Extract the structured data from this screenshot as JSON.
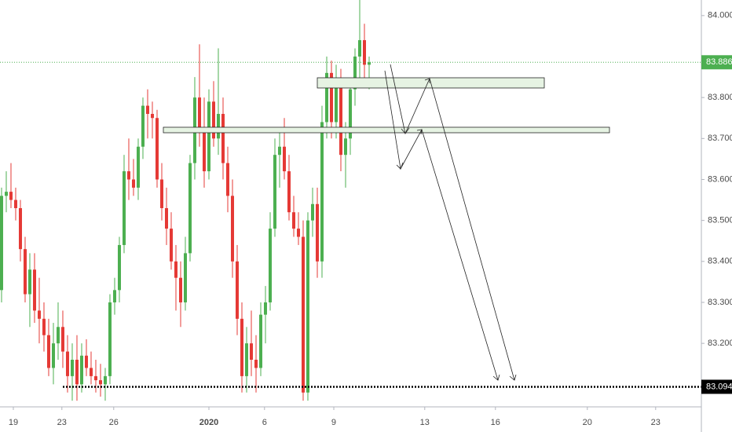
{
  "chart_data": {
    "type": "candlestick",
    "up_color": "#4caf50",
    "down_color": "#e53935",
    "open": [
      83.33,
      83.56,
      83.57,
      83.55,
      83.53,
      83.43,
      83.32,
      83.38,
      83.28,
      83.26,
      83.22,
      83.14,
      83.2,
      83.24,
      83.18,
      83.12,
      83.16,
      83.1,
      83.17,
      83.14,
      83.12,
      83.11,
      83.1,
      83.12,
      83.3,
      83.33,
      83.44,
      83.62,
      83.6,
      83.58,
      83.68,
      83.78,
      83.76,
      83.75,
      83.6,
      83.53,
      83.48,
      83.4,
      83.36,
      83.3,
      83.42,
      83.64,
      83.8,
      83.72,
      83.62,
      83.79,
      83.7,
      83.76,
      83.64,
      83.56,
      83.4,
      83.26,
      83.12,
      83.2,
      83.16,
      83.14,
      83.27,
      83.3,
      83.48,
      83.66,
      83.68,
      83.62,
      83.52,
      83.48,
      83.46,
      83.08,
      83.5,
      83.54,
      83.4,
      83.74,
      83.86,
      83.74,
      83.84,
      83.66,
      83.7,
      83.82,
      83.9,
      83.94,
      83.88
    ],
    "high": [
      83.58,
      83.62,
      83.64,
      83.58,
      83.55,
      83.46,
      83.42,
      83.42,
      83.36,
      83.3,
      83.26,
      83.25,
      83.3,
      83.28,
      83.22,
      83.2,
      83.22,
      83.2,
      83.21,
      83.18,
      83.16,
      83.15,
      83.14,
      83.32,
      83.36,
      83.46,
      83.66,
      83.7,
      83.65,
      83.7,
      83.8,
      83.82,
      83.79,
      83.77,
      83.64,
      83.58,
      83.52,
      83.44,
      83.4,
      83.46,
      83.66,
      83.85,
      83.93,
      83.8,
      83.82,
      83.84,
      83.92,
      83.8,
      83.68,
      83.6,
      83.44,
      83.3,
      83.24,
      83.28,
      83.22,
      83.3,
      83.34,
      83.52,
      83.7,
      83.72,
      83.75,
      83.66,
      83.56,
      83.52,
      83.5,
      83.52,
      83.58,
      83.58,
      83.78,
      83.9,
      83.89,
      83.88,
      83.87,
      83.74,
      83.84,
      83.92,
      84.04,
      83.98,
      83.9
    ],
    "low": [
      83.3,
      83.52,
      83.53,
      83.5,
      83.4,
      83.3,
      83.24,
      83.25,
      83.2,
      83.18,
      83.12,
      83.1,
      83.16,
      83.14,
      83.08,
      83.06,
      83.06,
      83.08,
      83.12,
      83.1,
      83.08,
      83.07,
      83.06,
      83.1,
      83.27,
      83.3,
      83.42,
      83.55,
      83.56,
      83.55,
      83.65,
      83.7,
      83.7,
      83.58,
      83.5,
      83.44,
      83.38,
      83.28,
      83.24,
      83.28,
      83.4,
      83.6,
      83.68,
      83.58,
      83.6,
      83.68,
      83.66,
      83.6,
      83.52,
      83.36,
      83.22,
      83.08,
      83.08,
      83.12,
      83.08,
      83.12,
      83.2,
      83.28,
      83.46,
      83.58,
      83.6,
      83.5,
      83.46,
      83.44,
      83.06,
      83.06,
      83.46,
      83.36,
      83.36,
      83.7,
      83.7,
      83.7,
      83.62,
      83.58,
      83.66,
      83.78,
      83.84,
      83.84,
      83.82
    ],
    "close": [
      83.56,
      83.57,
      83.55,
      83.53,
      83.43,
      83.32,
      83.38,
      83.28,
      83.26,
      83.22,
      83.14,
      83.2,
      83.24,
      83.18,
      83.12,
      83.16,
      83.1,
      83.17,
      83.14,
      83.12,
      83.11,
      83.1,
      83.12,
      83.3,
      83.33,
      83.44,
      83.62,
      83.6,
      83.58,
      83.68,
      83.78,
      83.76,
      83.75,
      83.6,
      83.53,
      83.48,
      83.4,
      83.36,
      83.3,
      83.42,
      83.64,
      83.8,
      83.72,
      83.62,
      83.79,
      83.7,
      83.76,
      83.64,
      83.56,
      83.4,
      83.26,
      83.12,
      83.2,
      83.16,
      83.14,
      83.27,
      83.3,
      83.48,
      83.66,
      83.68,
      83.62,
      83.52,
      83.48,
      83.46,
      83.08,
      83.5,
      83.54,
      83.4,
      83.74,
      83.86,
      83.74,
      83.84,
      83.66,
      83.7,
      83.82,
      83.9,
      83.94,
      83.88,
      83.886
    ],
    "xlim": [
      -0.33,
      148.5
    ],
    "xticks": [
      {
        "value": 2.5,
        "label": "19"
      },
      {
        "value": 12.8,
        "label": "23"
      },
      {
        "value": 23.8,
        "label": "26"
      },
      {
        "value": 44,
        "label": "2020"
      },
      {
        "value": 55.8,
        "label": "6"
      },
      {
        "value": 70.5,
        "label": "9"
      },
      {
        "value": 89.8,
        "label": "13"
      },
      {
        "value": 104.8,
        "label": "16"
      },
      {
        "value": 124.3,
        "label": "20"
      },
      {
        "value": 138.8,
        "label": "23"
      }
    ],
    "ylim": [
      83.045,
      84.038
    ],
    "yticks": [
      {
        "value": 84.0,
        "label": "84.000"
      },
      {
        "value": 83.8,
        "label": "83.800"
      },
      {
        "value": 83.7,
        "label": "83.700"
      },
      {
        "value": 83.6,
        "label": "83.600"
      },
      {
        "value": 83.5,
        "label": "83.500"
      },
      {
        "value": 83.4,
        "label": "83.400"
      },
      {
        "value": 83.3,
        "label": "83.300"
      },
      {
        "value": 83.2,
        "label": "83.200"
      }
    ],
    "price_lines": [
      {
        "value": 83.886,
        "color": "#4caf50"
      },
      {
        "value": 83.094,
        "color": "#000000"
      }
    ]
  }
}
